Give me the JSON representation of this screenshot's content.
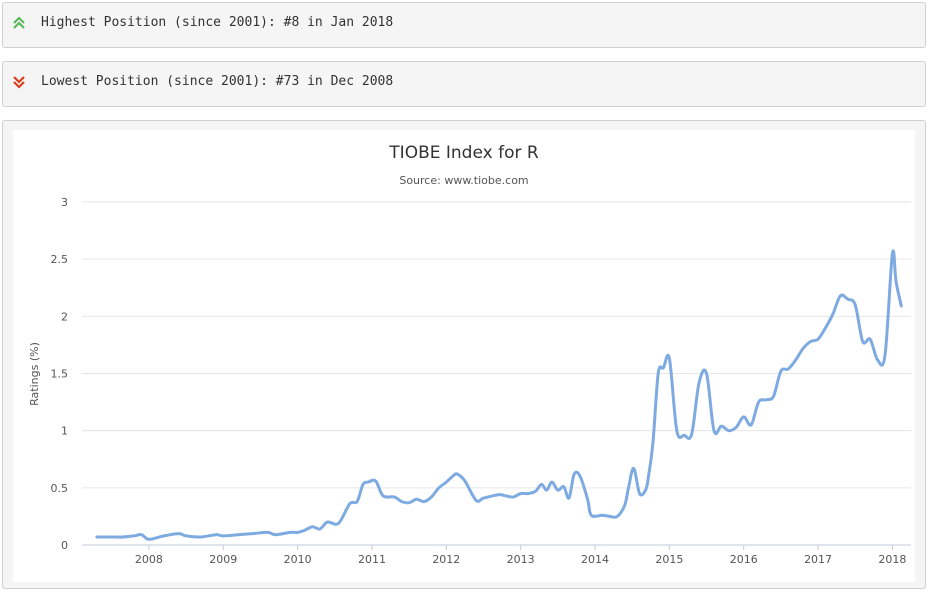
{
  "positions": {
    "highest": {
      "text": "Highest Position (since 2001): #8 in Jan 2018",
      "icon": "double-chevron-up-icon",
      "color": "#5cb85c"
    },
    "lowest": {
      "text": "Lowest Position (since 2001): #73 in Dec 2008",
      "icon": "double-chevron-down-icon",
      "color": "#d9411e"
    }
  },
  "chart_data": {
    "type": "line",
    "title": "TIOBE Index for R",
    "subtitle": "Source: www.tiobe.com",
    "xlabel": "",
    "ylabel": "Ratings (%)",
    "ylim": [
      0,
      3
    ],
    "yticks": [
      "0",
      "0.5",
      "1",
      "1.5",
      "2",
      "2.5",
      "3"
    ],
    "xticks": [
      "2008",
      "2009",
      "2010",
      "2011",
      "2012",
      "2013",
      "2014",
      "2015",
      "2016",
      "2017",
      "2018"
    ],
    "grid": true,
    "line_color": "#7eaae2",
    "series": [
      {
        "x": [
          2007.3,
          2007.5,
          2007.65,
          2007.8,
          2007.9,
          2008.0,
          2008.2,
          2008.4,
          2008.5,
          2008.7,
          2008.9,
          2009.0,
          2009.2,
          2009.4,
          2009.6,
          2009.7,
          2009.9,
          2010.0,
          2010.1,
          2010.2,
          2010.3,
          2010.4,
          2010.55,
          2010.7,
          2010.8,
          2010.88,
          2010.95,
          2011.05,
          2011.15,
          2011.3,
          2011.4,
          2011.5,
          2011.6,
          2011.7,
          2011.8,
          2011.9,
          2012.0,
          2012.1,
          2012.15,
          2012.25,
          2012.4,
          2012.5,
          2012.7,
          2012.8,
          2012.9,
          2013.0,
          2013.1,
          2013.2,
          2013.28,
          2013.35,
          2013.42,
          2013.5,
          2013.58,
          2013.65,
          2013.72,
          2013.8,
          2013.9,
          2013.95,
          2014.1,
          2014.2,
          2014.3,
          2014.4,
          2014.45,
          2014.52,
          2014.6,
          2014.68,
          2014.72,
          2014.78,
          2014.85,
          2014.92,
          2015.0,
          2015.1,
          2015.2,
          2015.3,
          2015.4,
          2015.5,
          2015.6,
          2015.7,
          2015.8,
          2015.9,
          2016.0,
          2016.1,
          2016.2,
          2016.3,
          2016.4,
          2016.5,
          2016.6,
          2016.7,
          2016.8,
          2016.9,
          2017.0,
          2017.1,
          2017.2,
          2017.3,
          2017.4,
          2017.5,
          2017.6,
          2017.7,
          2017.8,
          2017.9,
          2018.0,
          2018.05,
          2018.12
        ],
        "values": [
          0.07,
          0.07,
          0.07,
          0.08,
          0.09,
          0.05,
          0.08,
          0.1,
          0.08,
          0.07,
          0.09,
          0.08,
          0.09,
          0.1,
          0.11,
          0.09,
          0.11,
          0.11,
          0.13,
          0.16,
          0.14,
          0.2,
          0.19,
          0.36,
          0.38,
          0.53,
          0.55,
          0.56,
          0.43,
          0.42,
          0.38,
          0.37,
          0.4,
          0.38,
          0.42,
          0.5,
          0.55,
          0.61,
          0.62,
          0.56,
          0.39,
          0.41,
          0.44,
          0.43,
          0.42,
          0.45,
          0.45,
          0.47,
          0.53,
          0.48,
          0.55,
          0.48,
          0.51,
          0.41,
          0.62,
          0.6,
          0.4,
          0.26,
          0.26,
          0.25,
          0.25,
          0.35,
          0.5,
          0.67,
          0.45,
          0.48,
          0.6,
          0.9,
          1.5,
          1.55,
          1.63,
          1.0,
          0.96,
          0.97,
          1.42,
          1.5,
          1.0,
          1.04,
          1.0,
          1.03,
          1.12,
          1.05,
          1.25,
          1.27,
          1.3,
          1.52,
          1.54,
          1.62,
          1.72,
          1.78,
          1.8,
          1.9,
          2.02,
          2.18,
          2.15,
          2.1,
          1.78,
          1.8,
          1.62,
          1.66,
          2.55,
          2.3,
          2.09
        ]
      }
    ]
  }
}
